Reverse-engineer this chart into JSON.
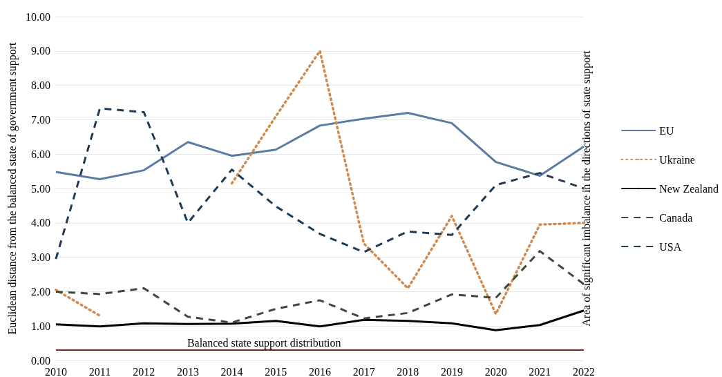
{
  "chart_data": {
    "type": "line",
    "categories": [
      "2010",
      "2011",
      "2012",
      "2013",
      "2014",
      "2015",
      "2016",
      "2017",
      "2018",
      "2019",
      "2020",
      "2021",
      "2022"
    ],
    "series": [
      {
        "name": "EU",
        "color": "#5a7ca3",
        "line_style": "solid",
        "values": [
          5.48,
          5.27,
          5.53,
          6.35,
          5.95,
          6.13,
          6.83,
          7.03,
          7.2,
          6.9,
          5.77,
          5.37,
          6.22
        ]
      },
      {
        "name": "Ukraine",
        "color": "#d08a4f",
        "line_style": "dotted",
        "values": [
          2.05,
          1.3,
          null,
          null,
          5.15,
          7.1,
          9.0,
          3.4,
          2.1,
          4.2,
          1.35,
          3.95,
          4.0
        ]
      },
      {
        "name": "New Zealand",
        "color": "#000000",
        "line_style": "solid",
        "values": [
          1.05,
          0.99,
          1.08,
          1.06,
          1.07,
          1.15,
          0.99,
          1.18,
          1.15,
          1.08,
          0.88,
          1.03,
          1.45
        ]
      },
      {
        "name": "Canada",
        "color": "#3d4a3a",
        "line_style": "dashed",
        "values": [
          2.0,
          1.93,
          2.1,
          1.27,
          1.1,
          1.5,
          1.75,
          1.22,
          1.38,
          1.92,
          1.82,
          3.18,
          2.22
        ]
      },
      {
        "name": "USA",
        "color": "#1f3a55",
        "line_style": "dashed",
        "values": [
          2.95,
          7.33,
          7.22,
          4.0,
          5.55,
          4.48,
          3.68,
          3.15,
          3.75,
          3.65,
          5.1,
          5.45,
          5.0
        ]
      }
    ],
    "ylabel": "Euclidean distance from the balanced state of government support",
    "annotations": [
      "Area of significant imbalance in the directions of state support"
    ],
    "ref_lines": [
      {
        "axis": "y",
        "value": 0.3,
        "label": "Balanced state support distribution",
        "color": "#6b2b24"
      }
    ],
    "ylim": [
      0,
      10
    ],
    "yticks": [
      {
        "value": 0,
        "label": "0.00"
      },
      {
        "value": 1,
        "label": "1.00"
      },
      {
        "value": 2,
        "label": "2.00"
      },
      {
        "value": 3,
        "label": "3.00"
      },
      {
        "value": 4,
        "label": "4.00"
      },
      {
        "value": 5,
        "label": "5.00"
      },
      {
        "value": 6,
        "label": "6.00"
      },
      {
        "value": 7,
        "label": "7.00"
      },
      {
        "value": 8,
        "label": "8.00"
      },
      {
        "value": 9,
        "label": "9.00"
      },
      {
        "value": 10,
        "label": "10.00"
      }
    ],
    "grid": "y",
    "legend": "right",
    "marker": "none"
  }
}
